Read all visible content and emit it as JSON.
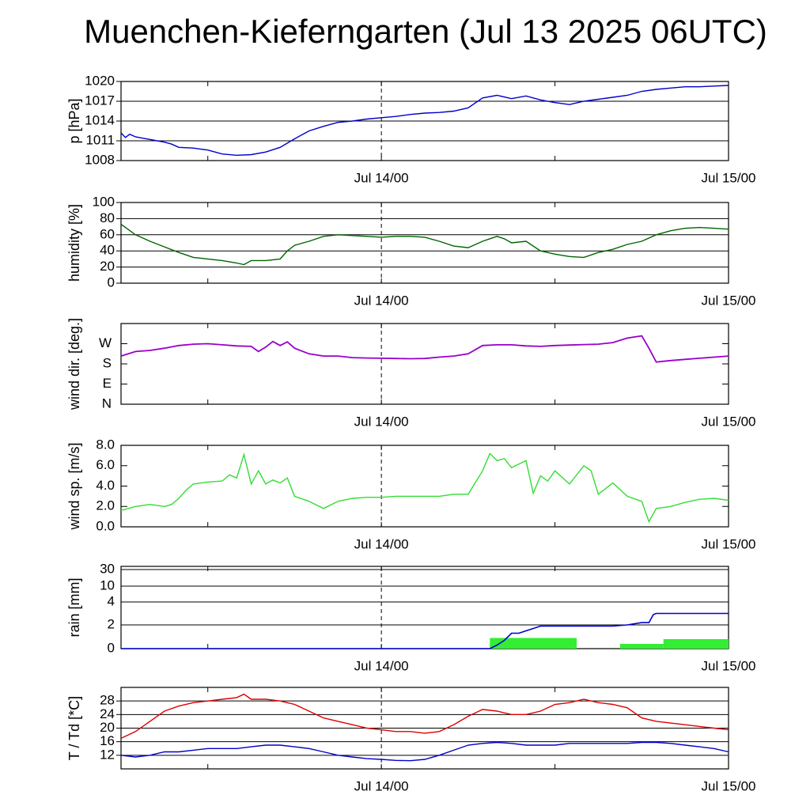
{
  "title": "Muenchen-Kieferngarten (Jul 13 2025 06UTC)",
  "colors": {
    "pressure": "#0000cc",
    "humidity": "#006600",
    "wind_dir": "#9900cc",
    "wind_speed": "#33dd33",
    "rain_cum": "#0000cc",
    "rain_bar": "#33ee33",
    "temperature": "#dd0000",
    "dewpoint": "#0000cc"
  },
  "chart_data": [
    {
      "type": "line",
      "ylabel": "p [hPa]",
      "xlim_hours": [
        0,
        42
      ],
      "ylim": [
        1008,
        1020
      ],
      "yticks": [
        1008,
        1011,
        1014,
        1017,
        1020
      ],
      "xtick_labels": [
        "Jul 14/00",
        "Jul 15/00"
      ],
      "series": [
        {
          "x": [
            0,
            0.3,
            0.6,
            1,
            1.5,
            2,
            2.5,
            3,
            3.5,
            4,
            5,
            6,
            7,
            8,
            9,
            10,
            11,
            12,
            13,
            14,
            15,
            16,
            17,
            18,
            19,
            20,
            21,
            22,
            23,
            24,
            25,
            26,
            27,
            28,
            29,
            30,
            31,
            32,
            33,
            34,
            35,
            36,
            37,
            38,
            39,
            40,
            41,
            42
          ],
          "y": [
            1012.2,
            1011.5,
            1012.0,
            1011.6,
            1011.4,
            1011.2,
            1011.0,
            1010.8,
            1010.5,
            1010.0,
            1009.9,
            1009.6,
            1009.0,
            1008.8,
            1008.9,
            1009.3,
            1010.0,
            1011.3,
            1012.5,
            1013.2,
            1013.8,
            1014.0,
            1014.3,
            1014.5,
            1014.7,
            1015.0,
            1015.2,
            1015.3,
            1015.5,
            1016.0,
            1017.5,
            1017.9,
            1017.4,
            1017.8,
            1017.2,
            1016.8,
            1016.5,
            1017.0,
            1017.3,
            1017.6,
            1017.9,
            1018.5,
            1018.8,
            1019.0,
            1019.2,
            1019.2,
            1019.3,
            1019.4
          ]
        }
      ]
    },
    {
      "type": "line",
      "ylabel": "humidity [%]",
      "xlim_hours": [
        0,
        42
      ],
      "ylim": [
        0,
        100
      ],
      "yticks": [
        0,
        20,
        40,
        60,
        80,
        100
      ],
      "xtick_labels": [
        "Jul 14/00",
        "Jul 15/00"
      ],
      "series": [
        {
          "x": [
            0,
            1,
            2,
            3,
            4,
            5,
            6,
            7,
            8,
            8.5,
            9,
            10,
            11,
            11.5,
            12,
            13,
            14,
            15,
            16,
            17,
            18,
            19,
            20,
            21,
            22,
            23,
            24,
            25,
            26,
            26.5,
            27,
            28,
            29,
            30,
            31,
            32,
            33,
            34,
            35,
            36,
            37,
            38,
            39,
            40,
            41,
            42
          ],
          "y": [
            73,
            60,
            52,
            45,
            38,
            32,
            30,
            28,
            25,
            23,
            28,
            28,
            30,
            40,
            47,
            52,
            58,
            60,
            59,
            58,
            57,
            58,
            58,
            57,
            52,
            46,
            44,
            52,
            58,
            55,
            50,
            52,
            40,
            36,
            33,
            32,
            38,
            42,
            48,
            52,
            60,
            65,
            68,
            69,
            68,
            67
          ]
        }
      ]
    },
    {
      "type": "line",
      "ylabel": "wind dir. [deg.]",
      "xlim_hours": [
        0,
        42
      ],
      "ylim": [
        0,
        360
      ],
      "ytick_labels": [
        "N",
        "E",
        "S",
        "W"
      ],
      "ytick_values": [
        0,
        90,
        180,
        270
      ],
      "xtick_labels": [
        "Jul 14/00",
        "Jul 15/00"
      ],
      "series": [
        {
          "x": [
            0,
            1,
            2,
            3,
            4,
            5,
            6,
            7,
            8,
            9,
            9.5,
            10,
            10.5,
            11,
            11.5,
            12,
            13,
            14,
            15,
            16,
            17,
            18,
            19,
            20,
            21,
            22,
            23,
            24,
            25,
            26,
            27,
            28,
            29,
            30,
            31,
            32,
            33,
            34,
            35,
            36,
            36.5,
            37,
            38,
            39,
            40,
            41,
            42
          ],
          "y": [
            215,
            235,
            240,
            250,
            262,
            268,
            270,
            265,
            260,
            258,
            235,
            255,
            280,
            262,
            278,
            250,
            225,
            215,
            215,
            208,
            206,
            205,
            204,
            203,
            204,
            210,
            215,
            225,
            262,
            265,
            265,
            260,
            258,
            262,
            264,
            266,
            268,
            275,
            295,
            305,
            250,
            188,
            195,
            200,
            205,
            210,
            215
          ]
        }
      ]
    },
    {
      "type": "line",
      "ylabel": "wind sp. [m/s]",
      "xlim_hours": [
        0,
        42
      ],
      "ylim": [
        0,
        8
      ],
      "yticks": [
        "0.0",
        "2.0",
        "4.0",
        "6.0",
        "8.0"
      ],
      "xtick_labels": [
        "Jul 14/00",
        "Jul 15/00"
      ],
      "series": [
        {
          "x": [
            0,
            0.5,
            1,
            2,
            3,
            3.5,
            4,
            4.5,
            5,
            6,
            7,
            7.5,
            8,
            8.5,
            9,
            9.5,
            10,
            10.5,
            11,
            11.5,
            12,
            13,
            14,
            15,
            16,
            17,
            18,
            19,
            20,
            21,
            22,
            23,
            24,
            25,
            25.5,
            26,
            26.5,
            27,
            28,
            28.5,
            29,
            29.5,
            30,
            31,
            32,
            32.5,
            33,
            34,
            35,
            36,
            36.5,
            37,
            38,
            39,
            40,
            41,
            42
          ],
          "y": [
            1.6,
            1.8,
            2.0,
            2.2,
            2.0,
            2.2,
            2.8,
            3.6,
            4.2,
            4.4,
            4.5,
            5.1,
            4.8,
            7.1,
            4.2,
            5.5,
            4.2,
            4.6,
            4.3,
            4.8,
            3.0,
            2.5,
            1.8,
            2.5,
            2.8,
            2.9,
            2.9,
            3.0,
            3.0,
            3.0,
            3.0,
            3.2,
            3.2,
            5.5,
            7.2,
            6.5,
            6.7,
            5.8,
            6.5,
            3.3,
            5.0,
            4.5,
            5.5,
            4.2,
            6.0,
            5.5,
            3.2,
            4.3,
            3.0,
            2.5,
            0.5,
            1.8,
            2.0,
            2.4,
            2.7,
            2.8,
            2.6
          ]
        }
      ]
    },
    {
      "type": "bar",
      "ylabel": "rain [mm]",
      "xlim_hours": [
        0,
        42
      ],
      "yticks": [
        "0",
        "2",
        "4",
        "10",
        "30"
      ],
      "xtick_labels": [
        "Jul 14/00",
        "Jul 15/00"
      ],
      "bars": [
        {
          "x_start": 25.5,
          "x_end": 31.5,
          "value": 0.9
        },
        {
          "x_start": 34.5,
          "x_end": 37.5,
          "value": 0.4
        },
        {
          "x_start": 37.5,
          "x_end": 42,
          "value": 0.8
        }
      ],
      "cumulative": {
        "x": [
          0,
          25.5,
          26,
          26.5,
          27,
          27.5,
          28,
          29,
          30,
          31,
          32,
          33,
          34,
          35,
          36,
          36.5,
          36.8,
          37,
          38,
          39,
          40,
          41,
          42
        ],
        "y": [
          0,
          0,
          0.3,
          0.7,
          1.3,
          1.3,
          1.5,
          1.9,
          1.9,
          1.9,
          1.9,
          1.9,
          1.9,
          2.0,
          2.2,
          2.2,
          2.9,
          3.0,
          3.0,
          3.0,
          3.0,
          3.0,
          3.0
        ]
      }
    },
    {
      "type": "line",
      "ylabel": "T / Td [*C]",
      "xlim_hours": [
        0,
        42
      ],
      "ylim": [
        8,
        32
      ],
      "yticks": [
        12,
        16,
        20,
        24,
        28
      ],
      "xtick_labels": [
        "Jul 14/00",
        "Jul 15/00"
      ],
      "series": [
        {
          "name": "T",
          "x": [
            0,
            1,
            2,
            3,
            4,
            5,
            6,
            7,
            8,
            8.5,
            9,
            10,
            11,
            12,
            13,
            14,
            15,
            16,
            17,
            18,
            19,
            20,
            21,
            22,
            23,
            24,
            25,
            26,
            27,
            28,
            29,
            30,
            31,
            32,
            33,
            34,
            35,
            36,
            37,
            38,
            39,
            40,
            41,
            42
          ],
          "y": [
            17,
            19,
            22,
            25,
            26.5,
            27.5,
            28,
            28.5,
            29,
            30,
            28.5,
            28.5,
            28,
            27,
            25,
            23,
            22,
            21,
            20,
            19.5,
            19,
            19,
            18.5,
            19,
            21,
            23.5,
            25.5,
            25,
            24,
            24,
            25,
            27,
            27.5,
            28.5,
            27.5,
            27,
            26,
            23,
            22,
            21.5,
            21,
            20.5,
            20,
            19.5
          ]
        },
        {
          "name": "Td",
          "x": [
            0,
            1,
            2,
            3,
            4,
            5,
            6,
            7,
            8,
            9,
            10,
            11,
            12,
            13,
            14,
            15,
            16,
            17,
            18,
            19,
            20,
            21,
            22,
            23,
            24,
            25,
            26,
            27,
            28,
            29,
            30,
            31,
            32,
            33,
            34,
            35,
            36,
            37,
            38,
            39,
            40,
            41,
            42
          ],
          "y": [
            12,
            11.5,
            12,
            13,
            13,
            13.5,
            14,
            14,
            14,
            14.5,
            15,
            15,
            14.5,
            14,
            13,
            12,
            11.5,
            11,
            10.8,
            10.5,
            10.4,
            10.8,
            12,
            13.5,
            15,
            15.5,
            15.8,
            15.5,
            15,
            15,
            15,
            15.5,
            15.5,
            15.5,
            15.5,
            15.5,
            15.8,
            15.8,
            15.5,
            15,
            14.5,
            14,
            13
          ]
        }
      ]
    }
  ]
}
